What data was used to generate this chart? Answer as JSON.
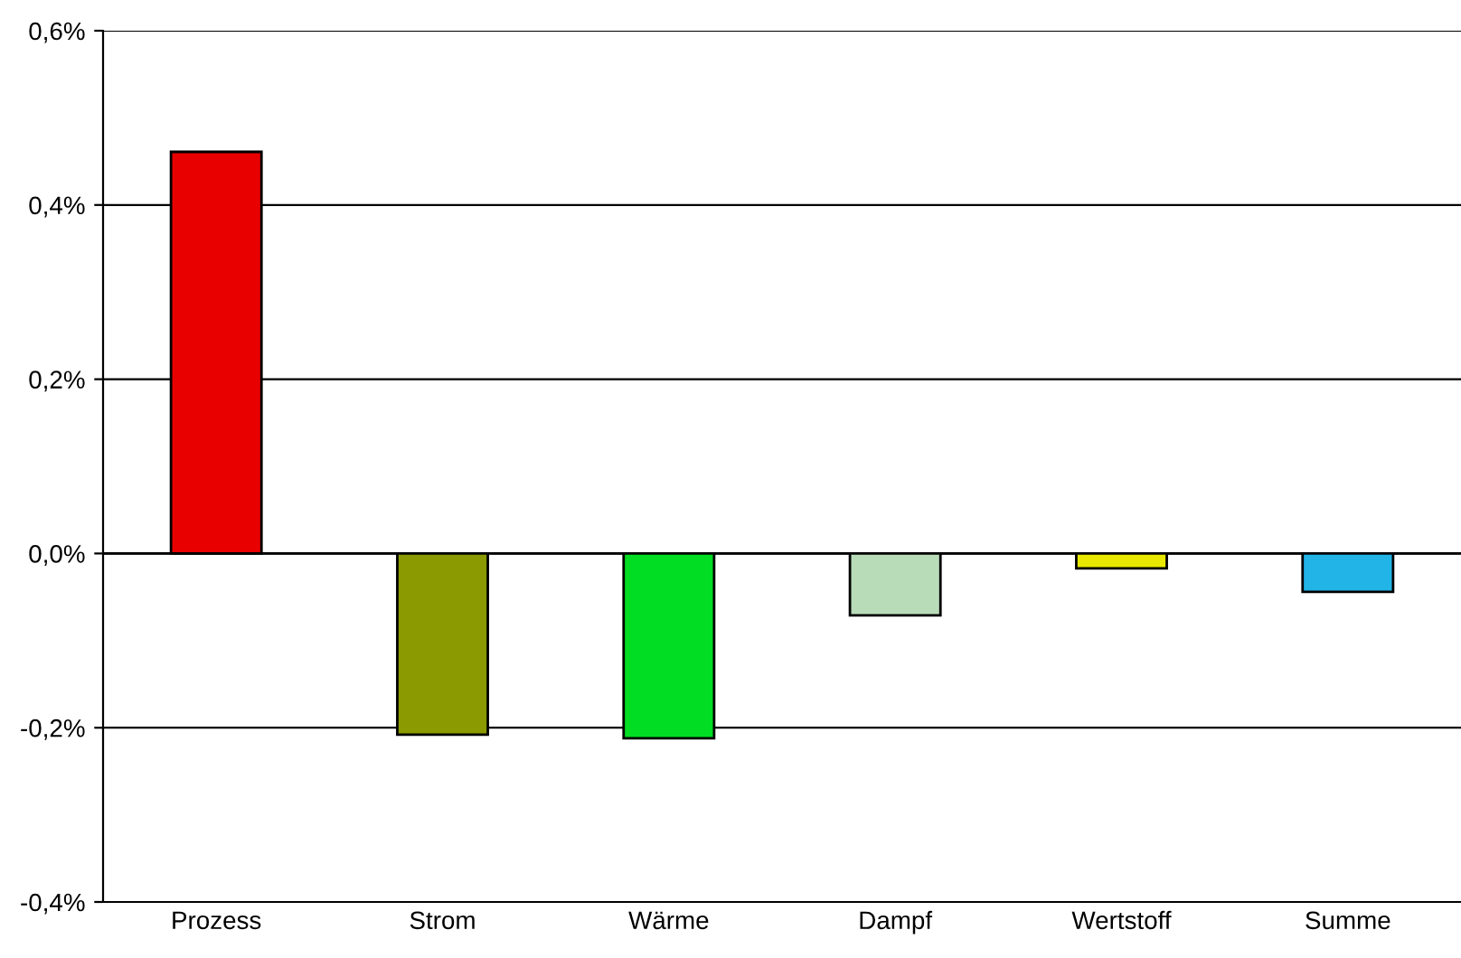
{
  "chart_data": {
    "type": "bar",
    "categories": [
      "Prozess",
      "Strom",
      "Wärme",
      "Dampf",
      "Wertstoff",
      "Summe"
    ],
    "values": [
      0.461,
      -0.208,
      -0.212,
      -0.071,
      -0.017,
      -0.044
    ],
    "colors": [
      "#e80000",
      "#8a9a00",
      "#00dd22",
      "#b8dcb8",
      "#e8e800",
      "#22b4e6"
    ],
    "ylim": [
      -0.4,
      0.6
    ],
    "yticks": [
      {
        "value": -0.4,
        "label": "-0,4%"
      },
      {
        "value": -0.2,
        "label": "-0,2%"
      },
      {
        "value": 0.0,
        "label": "0,0%"
      },
      {
        "value": 0.2,
        "label": "0,2%"
      },
      {
        "value": 0.4,
        "label": "0,4%"
      },
      {
        "value": 0.6,
        "label": "0,6%"
      }
    ],
    "grid": "y"
  }
}
